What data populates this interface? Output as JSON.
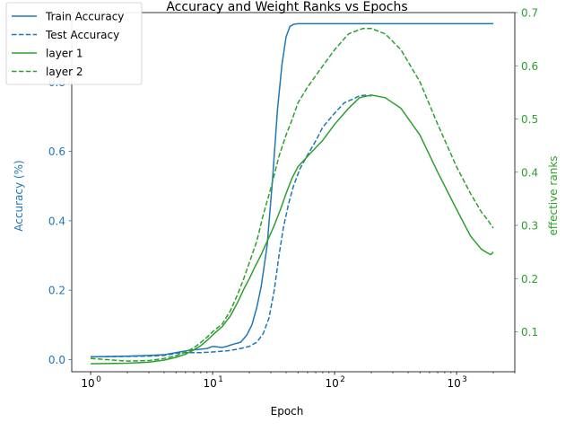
{
  "chart_data": {
    "type": "line",
    "title": "Accuracy and Weight Ranks vs Epochs",
    "xlabel": "Epoch",
    "ylabel_left": "Accuracy (%)",
    "ylabel_right": "effective ranks",
    "x_scale": "log",
    "xlim": [
      0.7,
      3000
    ],
    "ylim_left": [
      -0.035,
      1.0
    ],
    "ylim_right": [
      0.025,
      0.7
    ],
    "grid": false,
    "legend_position": "top-left",
    "colors": {
      "accuracy": "#1f77b4",
      "ranks": "#2ca02c"
    },
    "x_ticks": [
      {
        "value": 1,
        "label": "10",
        "exp": "0"
      },
      {
        "value": 10,
        "label": "10",
        "exp": "1"
      },
      {
        "value": 100,
        "label": "10",
        "exp": "2"
      },
      {
        "value": 1000,
        "label": "10",
        "exp": "3"
      }
    ],
    "y_ticks_left": [
      {
        "value": 0.0,
        "label": "0.0"
      },
      {
        "value": 0.2,
        "label": "0.2"
      },
      {
        "value": 0.4,
        "label": "0.4"
      },
      {
        "value": 0.6,
        "label": "0.6"
      },
      {
        "value": 0.8,
        "label": "0.8"
      }
    ],
    "y_ticks_right": [
      {
        "value": 0.1,
        "label": "0.1"
      },
      {
        "value": 0.2,
        "label": "0.2"
      },
      {
        "value": 0.3,
        "label": "0.3"
      },
      {
        "value": 0.4,
        "label": "0.4"
      },
      {
        "value": 0.5,
        "label": "0.5"
      },
      {
        "value": 0.6,
        "label": "0.6"
      },
      {
        "value": 0.7,
        "label": "0.7"
      }
    ],
    "series": [
      {
        "name": "Train Accuracy",
        "axis": "left",
        "color": "#1f77b4",
        "dash": "solid",
        "points": [
          [
            1,
            0.008
          ],
          [
            2,
            0.01
          ],
          [
            3,
            0.012
          ],
          [
            4,
            0.014
          ],
          [
            5,
            0.02
          ],
          [
            6,
            0.025
          ],
          [
            7,
            0.028
          ],
          [
            8,
            0.03
          ],
          [
            9,
            0.032
          ],
          [
            10,
            0.038
          ],
          [
            12,
            0.035
          ],
          [
            13,
            0.038
          ],
          [
            15,
            0.045
          ],
          [
            17,
            0.05
          ],
          [
            19,
            0.07
          ],
          [
            21,
            0.1
          ],
          [
            23,
            0.15
          ],
          [
            25,
            0.21
          ],
          [
            28,
            0.33
          ],
          [
            31,
            0.52
          ],
          [
            34,
            0.72
          ],
          [
            37,
            0.85
          ],
          [
            40,
            0.93
          ],
          [
            43,
            0.96
          ],
          [
            46,
            0.966
          ],
          [
            50,
            0.968
          ],
          [
            80,
            0.968
          ],
          [
            200,
            0.968
          ],
          [
            500,
            0.968
          ],
          [
            1000,
            0.968
          ],
          [
            2000,
            0.968
          ]
        ]
      },
      {
        "name": "Test Accuracy",
        "axis": "left",
        "color": "#1f77b4",
        "dash": "dashed",
        "points": [
          [
            1,
            0.008
          ],
          [
            2,
            0.009
          ],
          [
            3,
            0.01
          ],
          [
            4,
            0.012
          ],
          [
            5,
            0.018
          ],
          [
            6,
            0.02
          ],
          [
            7,
            0.02
          ],
          [
            8,
            0.02
          ],
          [
            10,
            0.022
          ],
          [
            13,
            0.025
          ],
          [
            16,
            0.03
          ],
          [
            20,
            0.038
          ],
          [
            23,
            0.05
          ],
          [
            26,
            0.075
          ],
          [
            29,
            0.12
          ],
          [
            32,
            0.2
          ],
          [
            35,
            0.3
          ],
          [
            38,
            0.38
          ],
          [
            42,
            0.45
          ],
          [
            46,
            0.5
          ],
          [
            52,
            0.55
          ],
          [
            60,
            0.59
          ],
          [
            70,
            0.63
          ],
          [
            80,
            0.67
          ],
          [
            100,
            0.71
          ],
          [
            120,
            0.74
          ],
          [
            140,
            0.75
          ],
          [
            160,
            0.76
          ],
          [
            180,
            0.762
          ],
          [
            200,
            0.76
          ]
        ]
      },
      {
        "name": "layer 1",
        "axis": "right",
        "color": "#2ca02c",
        "dash": "solid",
        "points": [
          [
            1,
            0.04
          ],
          [
            2,
            0.041
          ],
          [
            3,
            0.043
          ],
          [
            4,
            0.047
          ],
          [
            5,
            0.052
          ],
          [
            6,
            0.058
          ],
          [
            7,
            0.066
          ],
          [
            8,
            0.074
          ],
          [
            9,
            0.084
          ],
          [
            10,
            0.094
          ],
          [
            12,
            0.11
          ],
          [
            14,
            0.13
          ],
          [
            16,
            0.155
          ],
          [
            18,
            0.18
          ],
          [
            20,
            0.2
          ],
          [
            22,
            0.22
          ],
          [
            25,
            0.245
          ],
          [
            28,
            0.27
          ],
          [
            32,
            0.3
          ],
          [
            36,
            0.33
          ],
          [
            40,
            0.36
          ],
          [
            45,
            0.39
          ],
          [
            50,
            0.41
          ],
          [
            60,
            0.43
          ],
          [
            80,
            0.46
          ],
          [
            100,
            0.49
          ],
          [
            130,
            0.52
          ],
          [
            160,
            0.54
          ],
          [
            200,
            0.545
          ],
          [
            260,
            0.54
          ],
          [
            350,
            0.52
          ],
          [
            500,
            0.47
          ],
          [
            700,
            0.4
          ],
          [
            1000,
            0.33
          ],
          [
            1300,
            0.28
          ],
          [
            1600,
            0.255
          ],
          [
            1800,
            0.248
          ],
          [
            1900,
            0.245
          ],
          [
            2000,
            0.25
          ]
        ]
      },
      {
        "name": "layer 2",
        "axis": "right",
        "color": "#2ca02c",
        "dash": "dashed",
        "points": [
          [
            1,
            0.05
          ],
          [
            1.5,
            0.047
          ],
          [
            2,
            0.045
          ],
          [
            3,
            0.046
          ],
          [
            4,
            0.05
          ],
          [
            5,
            0.055
          ],
          [
            6,
            0.062
          ],
          [
            7,
            0.07
          ],
          [
            8,
            0.08
          ],
          [
            9,
            0.09
          ],
          [
            10,
            0.1
          ],
          [
            12,
            0.115
          ],
          [
            14,
            0.14
          ],
          [
            16,
            0.17
          ],
          [
            18,
            0.2
          ],
          [
            20,
            0.23
          ],
          [
            23,
            0.27
          ],
          [
            26,
            0.32
          ],
          [
            30,
            0.37
          ],
          [
            35,
            0.43
          ],
          [
            40,
            0.47
          ],
          [
            45,
            0.5
          ],
          [
            50,
            0.53
          ],
          [
            60,
            0.56
          ],
          [
            80,
            0.6
          ],
          [
            100,
            0.63
          ],
          [
            130,
            0.66
          ],
          [
            170,
            0.67
          ],
          [
            200,
            0.67
          ],
          [
            260,
            0.66
          ],
          [
            350,
            0.63
          ],
          [
            500,
            0.57
          ],
          [
            700,
            0.49
          ],
          [
            1000,
            0.41
          ],
          [
            1300,
            0.36
          ],
          [
            1600,
            0.325
          ],
          [
            1800,
            0.31
          ],
          [
            2000,
            0.295
          ]
        ]
      }
    ]
  }
}
